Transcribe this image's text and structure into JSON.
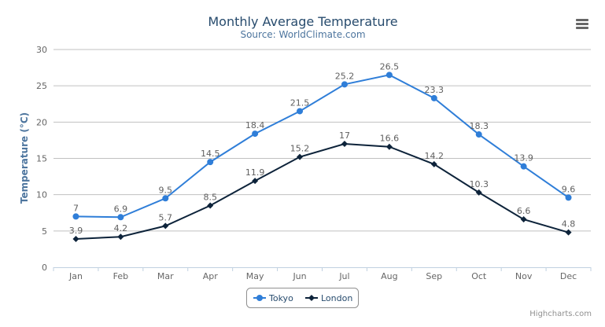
{
  "chart_data": {
    "type": "line",
    "title": "Monthly Average Temperature",
    "subtitle": "Source: WorldClimate.com",
    "xlabel": "",
    "ylabel": "Temperature (°C)",
    "categories": [
      "Jan",
      "Feb",
      "Mar",
      "Apr",
      "May",
      "Jun",
      "Jul",
      "Aug",
      "Sep",
      "Oct",
      "Nov",
      "Dec"
    ],
    "ylim": [
      0,
      30
    ],
    "yticks": [
      0,
      5,
      10,
      15,
      20,
      25,
      30
    ],
    "grid": true,
    "legend_position": "bottom-center",
    "data_labels": true,
    "series": [
      {
        "name": "Tokyo",
        "color": "#2f7ed8",
        "marker": "circle",
        "values": [
          7.0,
          6.9,
          9.5,
          14.5,
          18.4,
          21.5,
          25.2,
          26.5,
          23.3,
          18.3,
          13.9,
          9.6
        ]
      },
      {
        "name": "London",
        "color": "#0d233a",
        "marker": "diamond",
        "values": [
          3.9,
          4.2,
          5.7,
          8.5,
          11.9,
          15.2,
          17.0,
          16.6,
          14.2,
          10.3,
          6.6,
          4.8
        ]
      }
    ]
  },
  "credits": "Highcharts.com",
  "menu_icon": "hamburger-menu-icon"
}
